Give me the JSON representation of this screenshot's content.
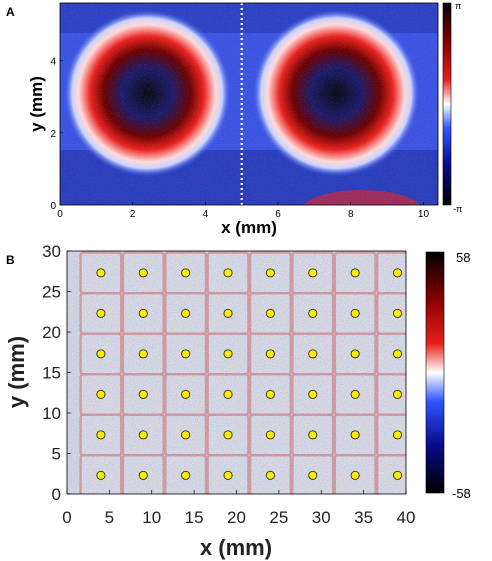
{
  "panel_a": {
    "label": "A",
    "xlabel": "x (mm)",
    "ylabel": "y (mm)",
    "x_ticks": [
      "0",
      "2",
      "4",
      "6",
      "8",
      "10"
    ],
    "y_ticks": [
      "0",
      "2",
      "4"
    ],
    "colorbar_ticks": [
      "π",
      "-π"
    ]
  },
  "panel_b": {
    "label": "B",
    "xlabel": "x (mm)",
    "ylabel": "y (mm)",
    "x_ticks": [
      "0",
      "5",
      "10",
      "15",
      "20",
      "25",
      "30",
      "35",
      "40"
    ],
    "y_ticks": [
      "0",
      "5",
      "10",
      "15",
      "20",
      "25",
      "30"
    ],
    "colorbar_ticks": [
      "58",
      "-58"
    ]
  },
  "colors": {
    "diverging_low": "#000000",
    "diverging_mid_low": "#1a3cff",
    "diverging_mid": "#ffffff",
    "diverging_mid_high": "#e8201c",
    "diverging_high": "#000000",
    "marker_fill": "#ffee00"
  },
  "chart_data": [
    {
      "type": "heatmap",
      "title": "",
      "xlabel": "x (mm)",
      "ylabel": "y (mm)",
      "xlim": [
        0,
        10.4
      ],
      "ylim": [
        0,
        5.6
      ],
      "x_ticks": [
        0,
        2,
        4,
        6,
        8,
        10
      ],
      "y_ticks": [
        0,
        2,
        4
      ],
      "colorbar": {
        "min_label": "-π",
        "max_label": "π",
        "colormap": "black-blue-white-red-black"
      },
      "rings": [
        {
          "center_x": 2.4,
          "center_y": 3.1,
          "radius": 2.3
        },
        {
          "center_x": 7.6,
          "center_y": 3.1,
          "radius": 2.3
        }
      ],
      "divider_x": 5.0
    },
    {
      "type": "heatmap",
      "title": "",
      "xlabel": "x (mm)",
      "ylabel": "y (mm)",
      "xlim": [
        0,
        40
      ],
      "ylim": [
        0,
        30
      ],
      "x_ticks": [
        0,
        5,
        10,
        15,
        20,
        25,
        30,
        35,
        40
      ],
      "y_ticks": [
        0,
        5,
        10,
        15,
        20,
        25,
        30
      ],
      "colorbar": {
        "min": -58,
        "max": 58,
        "colormap": "black-blue-white-red-black"
      },
      "marker_x": [
        4,
        9,
        14,
        19,
        24,
        29,
        34,
        39
      ],
      "marker_y": [
        2.3,
        7.3,
        12.3,
        17.3,
        22.3,
        27.3
      ]
    }
  ]
}
